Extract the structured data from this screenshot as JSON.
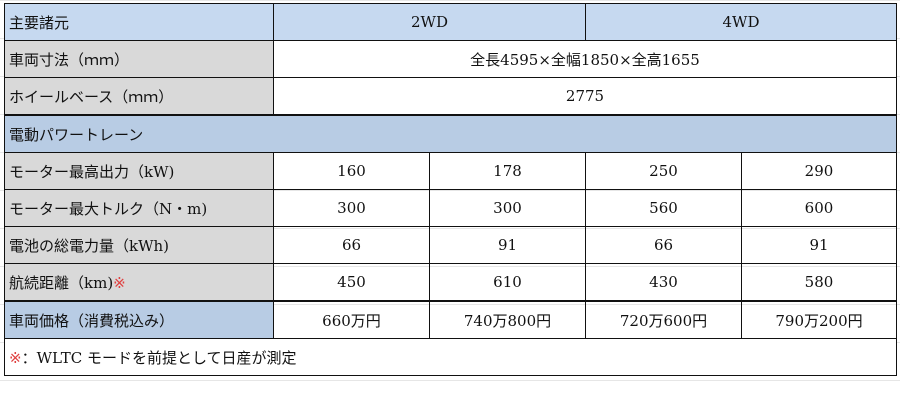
{
  "header": {
    "label": "主要諸元",
    "col_2wd": "2WD",
    "col_4wd": "4WD"
  },
  "dimensions": {
    "label": "車両寸法（ｍｍ）",
    "value": "全長4595×全幅1850×全高1655"
  },
  "wheelbase": {
    "label": "ホイールベース（ｍｍ）",
    "value": "2775"
  },
  "section": {
    "label": "電動パワートレーン"
  },
  "rows": [
    {
      "label": "モーター最高出力（kW)",
      "values": [
        "160",
        "178",
        "250",
        "290"
      ]
    },
    {
      "label": "モーター最大トルク（N・m)",
      "values": [
        "300",
        "300",
        "560",
        "600"
      ]
    },
    {
      "label": "電池の総電力量（kWh)",
      "values": [
        "66",
        "91",
        "66",
        "91"
      ]
    },
    {
      "label": "航続距離（km)",
      "mark": "※",
      "values": [
        "450",
        "610",
        "430",
        "580"
      ]
    }
  ],
  "price": {
    "label": "車両価格（消費税込み）",
    "values": [
      "660万円",
      "740万800円",
      "720万600円",
      "790万200円"
    ]
  },
  "note": {
    "mark": "※",
    "text": "：WLTC モードを前提として日産が測定"
  },
  "colors": {
    "header_bg": "#c6d9f0",
    "label_bg": "#d9d9d9",
    "section_bg": "#b8cce4",
    "mark": "#e04040"
  }
}
